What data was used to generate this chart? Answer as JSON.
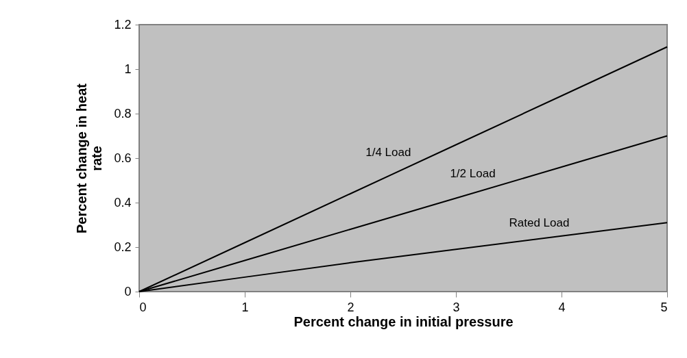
{
  "chart_data": {
    "type": "line",
    "xlabel": "Percent change in initial pressure",
    "ylabel": "Percent change in heat rate",
    "x": [
      0,
      1,
      2,
      3,
      4,
      5
    ],
    "series": [
      {
        "name": "1/4 Load",
        "color": "#000000",
        "values": [
          0,
          0.22,
          0.44,
          0.66,
          0.88,
          1.1
        ]
      },
      {
        "name": "1/2 Load",
        "color": "#000000",
        "values": [
          0,
          0.14,
          0.28,
          0.42,
          0.56,
          0.7
        ]
      },
      {
        "name": "Rated Load",
        "color": "#000000",
        "values": [
          0,
          0.065,
          0.13,
          0.19,
          0.25,
          0.31
        ]
      }
    ],
    "xlim": [
      0,
      5
    ],
    "xticks": [
      0,
      1,
      2,
      3,
      4,
      5
    ],
    "ylim": [
      0,
      1.2
    ],
    "yticks": [
      0,
      0.2,
      0.4,
      0.6,
      0.8,
      1,
      1.2
    ],
    "grid": false,
    "legend": false,
    "marker": "none",
    "line_style": "solid"
  }
}
